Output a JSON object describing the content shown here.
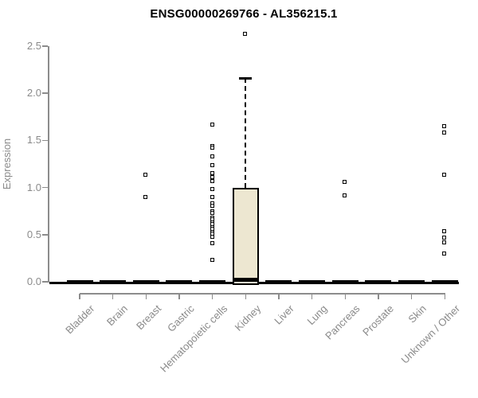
{
  "chart_data": {
    "type": "boxplot",
    "title": "ENSG00000269766 - AL356215.1",
    "ylabel": "Expression",
    "ylim": [
      0,
      2.65
    ],
    "ytick_values": [
      0,
      0.5,
      1,
      1.5,
      2,
      2.5
    ],
    "ytick_labels": [
      "0.0",
      "0.5",
      "1.0",
      "1.5",
      "2.0",
      "2.5"
    ],
    "grid": false,
    "legend": "none",
    "marker_style": "open-square",
    "categories": [
      "Bladder",
      "Brain",
      "Breast",
      "Gastric",
      "Hematopoietic cells",
      "Kidney",
      "Liver",
      "Lung",
      "Pancreas",
      "Prostate",
      "Skin",
      "Unknown / Other"
    ],
    "boxes": [
      {
        "category": "Bladder",
        "median": 0,
        "q1": 0,
        "q3": 0,
        "whisker_low": 0,
        "whisker_high": 0,
        "outliers": []
      },
      {
        "category": "Brain",
        "median": 0,
        "q1": 0,
        "q3": 0,
        "whisker_low": 0,
        "whisker_high": 0,
        "outliers": []
      },
      {
        "category": "Breast",
        "median": 0,
        "q1": 0,
        "q3": 0,
        "whisker_low": 0,
        "whisker_high": 0,
        "outliers": [
          1.14,
          0.9
        ]
      },
      {
        "category": "Gastric",
        "median": 0,
        "q1": 0,
        "q3": 0,
        "whisker_low": 0,
        "whisker_high": 0,
        "outliers": []
      },
      {
        "category": "Hematopoietic cells",
        "median": 0,
        "q1": 0,
        "q3": 0,
        "whisker_low": 0,
        "whisker_high": 0,
        "outliers": [
          1.67,
          1.44,
          1.42,
          1.33,
          1.24,
          1.15,
          1.11,
          1.07,
          0.98,
          0.9,
          0.83,
          0.81,
          0.75,
          0.73,
          0.68,
          0.66,
          0.63,
          0.61,
          0.58,
          0.56,
          0.53,
          0.51,
          0.48,
          0.41,
          0.23
        ]
      },
      {
        "category": "Kidney",
        "median": 0.02,
        "q1": 0,
        "q3": 1.0,
        "whisker_low": 0,
        "whisker_high": 2.16,
        "outliers": [
          2.63
        ]
      },
      {
        "category": "Liver",
        "median": 0,
        "q1": 0,
        "q3": 0,
        "whisker_low": 0,
        "whisker_high": 0,
        "outliers": []
      },
      {
        "category": "Lung",
        "median": 0,
        "q1": 0,
        "q3": 0,
        "whisker_low": 0,
        "whisker_high": 0,
        "outliers": []
      },
      {
        "category": "Pancreas",
        "median": 0,
        "q1": 0,
        "q3": 0,
        "whisker_low": 0,
        "whisker_high": 0,
        "outliers": [
          1.06,
          0.92
        ]
      },
      {
        "category": "Prostate",
        "median": 0,
        "q1": 0,
        "q3": 0,
        "whisker_low": 0,
        "whisker_high": 0,
        "outliers": []
      },
      {
        "category": "Skin",
        "median": 0,
        "q1": 0,
        "q3": 0,
        "whisker_low": 0,
        "whisker_high": 0,
        "outliers": []
      },
      {
        "category": "Unknown / Other",
        "median": 0,
        "q1": 0,
        "q3": 0,
        "whisker_low": 0,
        "whisker_high": 0,
        "outliers": [
          1.65,
          1.58,
          1.14,
          0.54,
          0.47,
          0.42,
          0.3
        ]
      }
    ],
    "colors": {
      "box_fill": "#EDE7D1",
      "box_border": "#000000",
      "axis": "#8C8C8C",
      "text": "#8A8A8A",
      "title_color": "#000000",
      "marker": "#000000",
      "background": "#FFFFFF"
    }
  }
}
